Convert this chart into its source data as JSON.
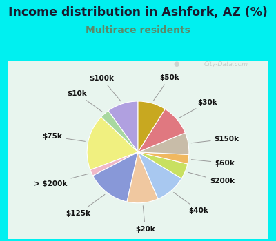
{
  "title": "Income distribution in Ashfork, AZ (%)",
  "subtitle": "Multirace residents",
  "title_color": "#1a1a2e",
  "subtitle_color": "#5a8a6a",
  "bg_cyan": "#00f0f0",
  "chart_bg": "#e8f5ee",
  "watermark": "City-Data.com",
  "labels": [
    "$100k",
    "$10k",
    "$75k",
    "> $200k",
    "$125k",
    "$20k",
    "$40k",
    "$200k",
    "$60k",
    "$150k",
    "$30k",
    "$50k"
  ],
  "sizes": [
    10,
    3,
    18,
    2,
    14,
    10,
    10,
    5,
    3,
    7,
    10,
    9
  ],
  "colors": [
    "#b0a0e0",
    "#a8d8a0",
    "#f0f080",
    "#f0b8c8",
    "#8898d8",
    "#f0c8a0",
    "#a8c8f0",
    "#c8e060",
    "#f0b860",
    "#c8bca8",
    "#e07880",
    "#c8a820"
  ],
  "startangle": 90,
  "label_fontsize": 7.5,
  "title_fontsize": 12.5,
  "subtitle_fontsize": 10
}
